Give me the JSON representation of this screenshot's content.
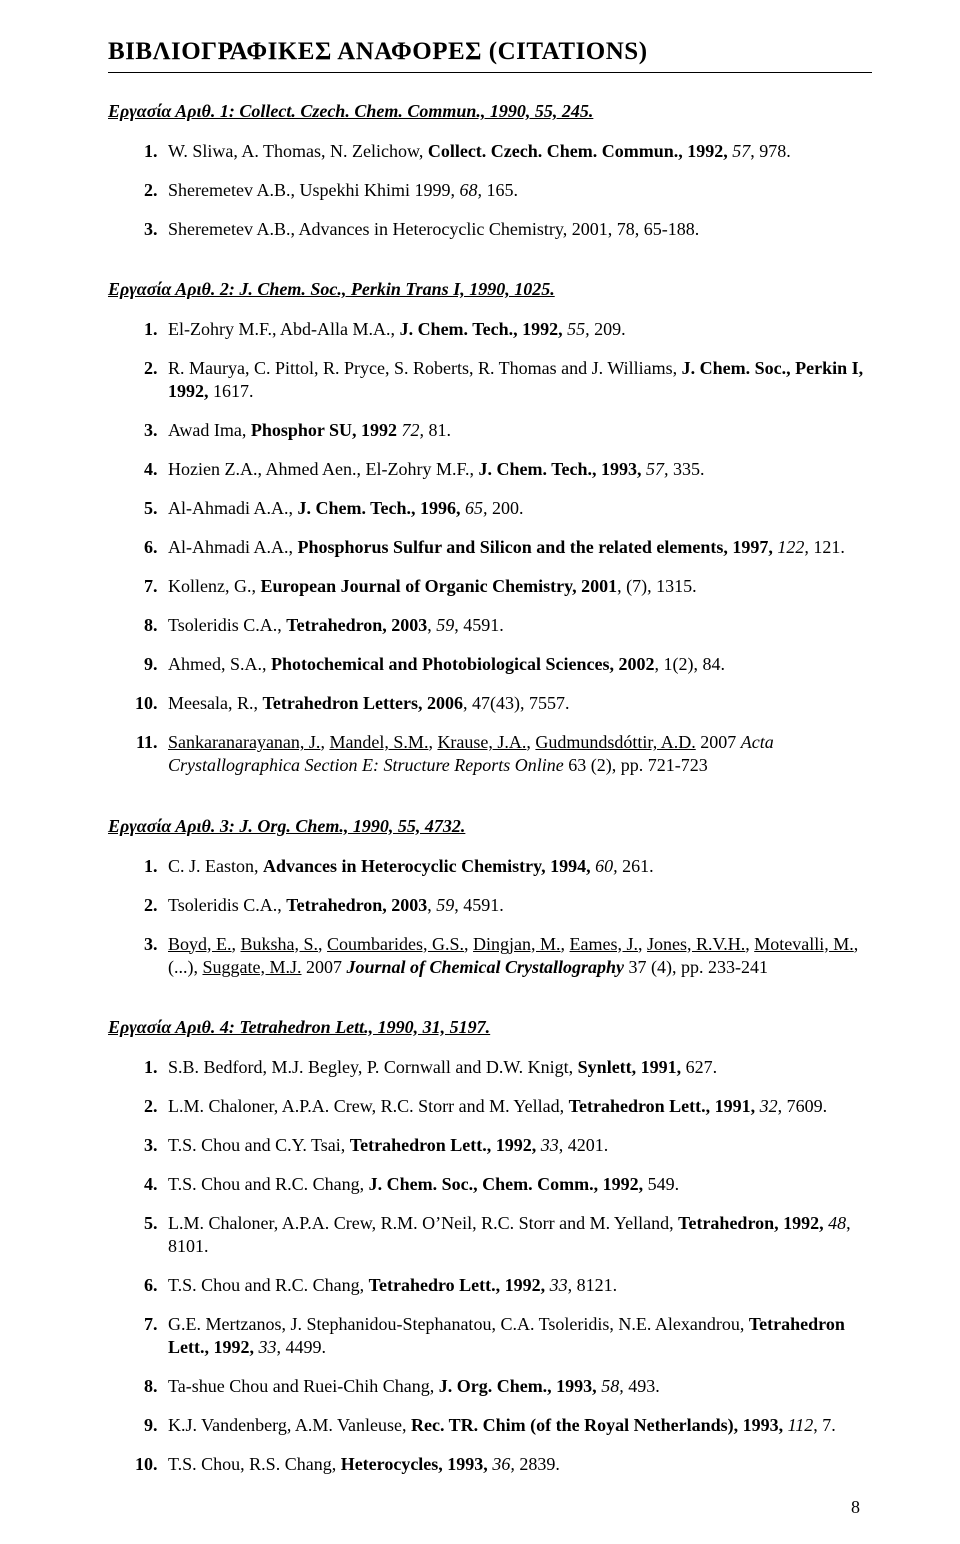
{
  "title_plain": "ΒΙΒΛΙΟΓΡΑΦΙΚΕΣ ΑΝΑΦΟΡΕΣ (",
  "title_bold": "CITATIONS",
  "title_tail": ")",
  "page_number": "8",
  "sec1": {
    "title": "Εργασία Αριθ. 1: Collect. Czech. Chem. Commun., 1990, 55, 245.",
    "items": [
      "W. Sliwa, A. Thomas, N. Zelichow, <b>Collect. Czech. Chem. Commun., 1992,</b> <i>57</i>, 978.",
      "Sheremetev A.B., Uspekhi Khimi 1999, <i>68,</i> 165.",
      "Sheremetev A.B., Advances in Heterocyclic Chemistry, 2001, 78, 65-188."
    ]
  },
  "sec2": {
    "title": "Εργασία Αριθ. 2: J. Chem. Soc., Perkin Trans I, 1990, 1025.",
    "items": [
      "El-Zohry M.F., Abd-Alla M.A., <b>J. Chem. Tech., 1992,</b> <i>55,</i> 209.",
      "R. Maurya, C. Pittol, R. Pryce, S. Roberts, R. Thomas and J. Williams, <b>J. Chem. Soc., Perkin I, 1992,</b> 1617.",
      "Awad Ima, <b>Phosphor SU, 1992</b> <i>72,</i> 81.",
      "Hozien Z.A., Ahmed Aen., El-Zohry M.F., <b>J. Chem. Tech., 1993,</b> <i>57,</i> 335.",
      "Al-Ahmadi A.A., <b>J. Chem. Tech., 1996,</b> <i>65,</i> 200.",
      "Al-Ahmadi A.A., <b>Phosphorus Sulfur and Silicon and the related elements, 1997,</b> <i>122,</i> 121.",
      "Kollenz, G., <b>European Journal of Organic Chemistry, 2001</b>, (7), 1315.",
      "Tsoleridis C.A., <b>Tetrahedron, 2003</b>, <i>59</i>, 4591.",
      "Ahmed, S.A., <b>Photochemical and Photobiological Sciences, 2002</b>, 1(2), 84.",
      "Meesala, R., <b>Tetrahedron Letters, 2006</b>, 47(43), 7557.",
      "<u>Sankaranarayanan, J.</u>, <u>Mandel, S.M.</u>, <u>Krause, J.A.</u>, <u>Gudmundsdóttir, A.D.</u> 2007 <i>Acta Crystallographica Section E: Structure Reports Online</i> 63 (2), pp. 721-723"
    ]
  },
  "sec3": {
    "title": "Εργασία Αριθ. 3:  J. Org. Chem., 1990, 55, 4732.",
    "items": [
      "C. J. Easton, <b>Advances in Heterocyclic Chemistry, 1994,</b> <i>60,</i> 261.",
      "Tsoleridis C.A., <b>Tetrahedron, 2003</b>, <i>59</i>, 4591.",
      "<u>Boyd, E.</u>, <u>Buksha, S.</u>, <u>Coumbarides, G.S.</u>, <u>Dingjan, M.</u>, <u>Eames, J.</u>, <u>Jones, R.V.H.</u>, <u>Motevalli, M.</u>, (...), <u>Suggate, M.J.</u> 2007 <b><i>Journal of Chemical Crystallography</i></b> 37 (4), pp. 233-241"
    ]
  },
  "sec4": {
    "title": "Εργασία Αριθ. 4: Tetrahedron Lett., 1990, 31, 5197.",
    "items": [
      "S.B. Bedford, M.J. Begley, P. Cornwall and D.W. Knigt, <b>Synlett, 1991,</b> 627.",
      "L.M. Chaloner, A.P.A. Crew, R.C. Storr and M. Yellad, <b>Tetrahedron Lett., 1991,</b> <i>32</i>, 7609.",
      "T.S. Chou and C.Y. Tsai, <b>Tetrahedron Lett., 1992,</b> <i>33</i>, 4201.",
      "T.S. Chou and R.C. Chang, <b>J. Chem. Soc., Chem. Comm., 1992,</b> 549.",
      "L.M. Chaloner, A.P.A. Crew, R.M. O’Neil, R.C. Storr and M. Yelland, <b>Tetrahedron, 1992,</b> <i>48</i>, 8101.",
      "T.S. Chou and R.C. Chang, <b>Tetrahedro Lett., 1992,</b> <i>33</i>, 8121.",
      "G.E. Mertzanos, J. Stephanidou-Stephanatou, C.A. Tsoleridis, N.E. Alexandrou, <b>Tetrahedron Lett., 1992,</b> <i>33</i>, 4499.",
      "Ta-shue Chou and Ruei-Chih Chang, <b>J. Org. Chem., 1993,</b> <i>58,</i> 493.",
      "K.J. Vandenberg, A.M. Vanleuse, <b>Rec. TR. Chim (of the Royal Netherlands), 1993,</b> <i>112</i>, 7.",
      "T.S. Chou, R.S. Chang, <b>Heterocycles, 1993,</b> <i>36,</i> 2839."
    ]
  }
}
